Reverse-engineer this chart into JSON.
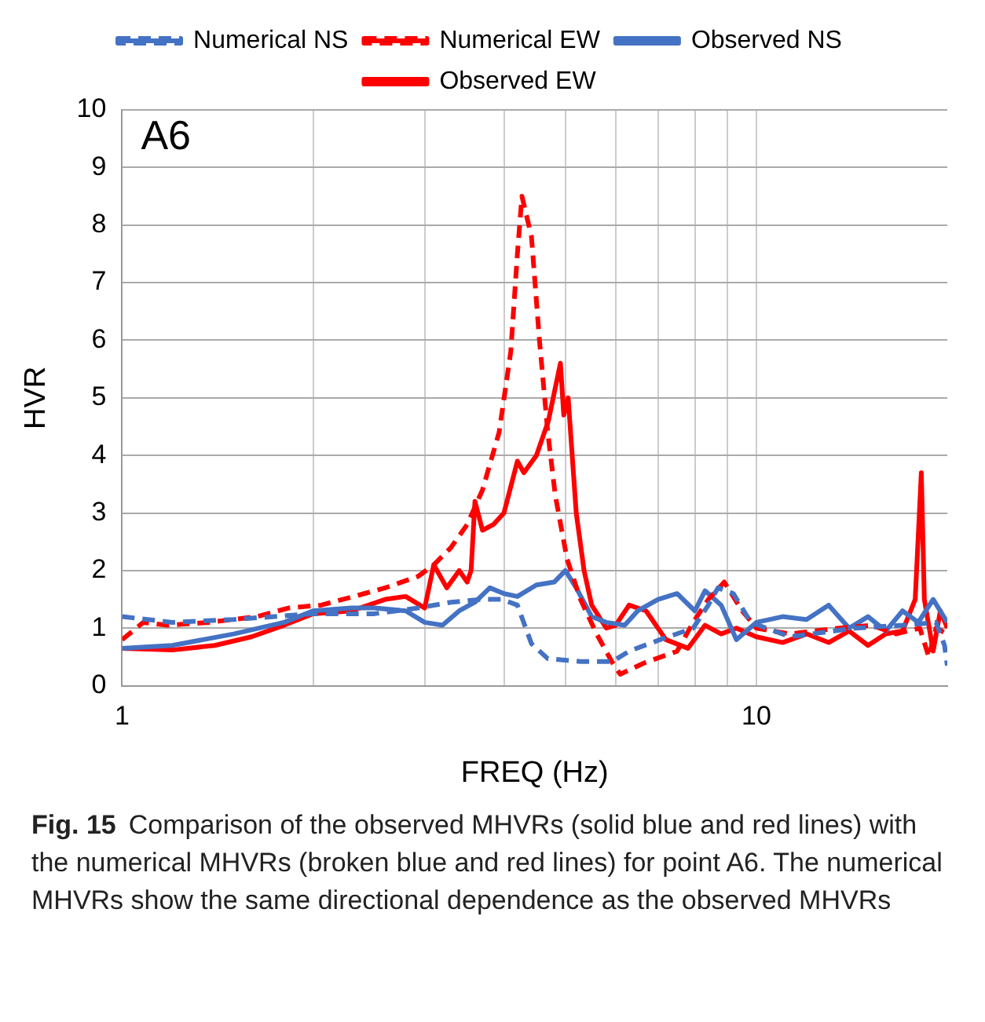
{
  "chart_data": {
    "type": "line",
    "xlabel": "FREQ (Hz)",
    "ylabel": "HVR",
    "annotations": [
      "A6",
      "Fig. 15",
      "Comparison of the observed MHVRs (solid blue and red lines) with the numerical MHVRs (broken blue and red lines) for point A6. The numerical MHVRs show the same directional dependence as the observed MHVRs"
    ],
    "log": "x",
    "xlim": [
      1,
      20
    ],
    "xticks": [
      1,
      {
        "value": 2,
        "label": null
      },
      {
        "value": 3,
        "label": null
      },
      {
        "value": 4,
        "label": null
      },
      {
        "value": 5,
        "label": null
      },
      {
        "value": 6,
        "label": null
      },
      {
        "value": 7,
        "label": null
      },
      {
        "value": 8,
        "label": null
      },
      {
        "value": 9,
        "label": null
      },
      10
    ],
    "ylim": [
      0,
      10
    ],
    "yticks": [
      0,
      1,
      2,
      3,
      4,
      5,
      6,
      7,
      8,
      9,
      10
    ],
    "grid": true,
    "legend": "top",
    "marker": "none",
    "series": [
      {
        "name": "Numerical NS",
        "color": "#4472c4",
        "line_style": "dashed",
        "x": [
          1,
          1.2,
          1.5,
          2,
          2.5,
          2.93,
          3.3,
          3.7,
          3.97,
          4.2,
          4.42,
          4.69,
          5.28,
          5.93,
          6.3,
          7.05,
          7.95,
          8.4,
          8.7,
          9.2,
          9.8,
          11.3,
          14.3,
          17,
          19.2,
          19.8,
          20
        ],
        "values": [
          1.2,
          1.1,
          1.15,
          1.25,
          1.25,
          1.35,
          1.45,
          1.5,
          1.5,
          1.4,
          0.73,
          0.47,
          0.42,
          0.42,
          0.6,
          0.8,
          1.0,
          1.4,
          1.7,
          1.6,
          1.1,
          0.85,
          1.0,
          1.05,
          1.1,
          0.7,
          0.35
        ]
      },
      {
        "name": "Numerical EW",
        "color": "#ff0000",
        "line_style": "dashed",
        "x": [
          1,
          1.08,
          1.18,
          1.37,
          1.63,
          1.83,
          2.06,
          2.32,
          2.6,
          2.93,
          3.1,
          3.3,
          3.5,
          3.7,
          3.93,
          4.1,
          4.2,
          4.27,
          4.42,
          4.55,
          4.69,
          4.82,
          5.03,
          5.28,
          5.6,
          5.93,
          6.1,
          6.67,
          7.5,
          7.95,
          8.4,
          8.9,
          9.5,
          10,
          11.3,
          13.5,
          15.2,
          16.6,
          18.1,
          18.7,
          19.2,
          20
        ],
        "values": [
          0.8,
          1.1,
          1.05,
          1.1,
          1.2,
          1.35,
          1.4,
          1.55,
          1.7,
          1.9,
          2.1,
          2.4,
          2.8,
          3.4,
          4.4,
          5.8,
          7.5,
          8.5,
          7.8,
          6.0,
          4.4,
          3.3,
          2.2,
          1.5,
          0.9,
          0.4,
          0.2,
          0.4,
          0.6,
          1.1,
          1.5,
          1.8,
          1.3,
          1.0,
          0.9,
          1.0,
          1.05,
          0.9,
          1.0,
          0.5,
          1.0,
          0.9
        ]
      },
      {
        "name": "Observed NS",
        "color": "#4472c4",
        "line_style": "solid",
        "x": [
          1,
          1.2,
          1.5,
          1.8,
          2,
          2.3,
          2.5,
          2.8,
          3,
          3.2,
          3.4,
          3.6,
          3.8,
          4.0,
          4.2,
          4.5,
          4.8,
          5.0,
          5.2,
          5.5,
          5.8,
          6.2,
          6.5,
          7,
          7.5,
          8,
          8.3,
          8.8,
          9.3,
          10,
          11,
          12,
          13,
          14,
          15,
          16,
          17,
          18,
          19,
          20
        ],
        "values": [
          0.65,
          0.7,
          0.9,
          1.1,
          1.3,
          1.35,
          1.35,
          1.3,
          1.1,
          1.05,
          1.3,
          1.45,
          1.7,
          1.6,
          1.55,
          1.75,
          1.8,
          2.0,
          1.7,
          1.2,
          1.1,
          1.05,
          1.3,
          1.5,
          1.6,
          1.3,
          1.65,
          1.4,
          0.8,
          1.1,
          1.2,
          1.15,
          1.4,
          1.0,
          1.2,
          0.95,
          1.3,
          1.1,
          1.5,
          1.1
        ]
      },
      {
        "name": "Observed EW",
        "color": "#ff0000",
        "line_style": "solid",
        "x": [
          1,
          1.2,
          1.4,
          1.6,
          1.8,
          2,
          2.3,
          2.6,
          2.8,
          3.0,
          3.1,
          3.25,
          3.4,
          3.5,
          3.55,
          3.6,
          3.7,
          3.85,
          4.0,
          4.2,
          4.3,
          4.5,
          4.7,
          4.91,
          4.97,
          5.05,
          5.2,
          5.35,
          5.5,
          5.8,
          6.0,
          6.3,
          6.7,
          7.2,
          7.8,
          8.3,
          8.8,
          9.3,
          10,
          11,
          12,
          13,
          14,
          15,
          16,
          17,
          17.8,
          18.2,
          18.4,
          19,
          19.5,
          20
        ],
        "values": [
          0.65,
          0.62,
          0.7,
          0.85,
          1.05,
          1.25,
          1.3,
          1.5,
          1.55,
          1.35,
          2.1,
          1.7,
          2.0,
          1.8,
          2.0,
          3.2,
          2.7,
          2.8,
          3.0,
          3.9,
          3.7,
          4.0,
          4.6,
          5.6,
          4.7,
          5.0,
          3.0,
          2.0,
          1.4,
          1.0,
          1.05,
          1.4,
          1.3,
          0.8,
          0.65,
          1.05,
          0.9,
          1.0,
          0.85,
          0.75,
          0.9,
          0.75,
          0.95,
          0.7,
          0.9,
          0.95,
          1.5,
          3.7,
          1.5,
          0.6,
          1.3,
          1.0
        ]
      }
    ]
  }
}
